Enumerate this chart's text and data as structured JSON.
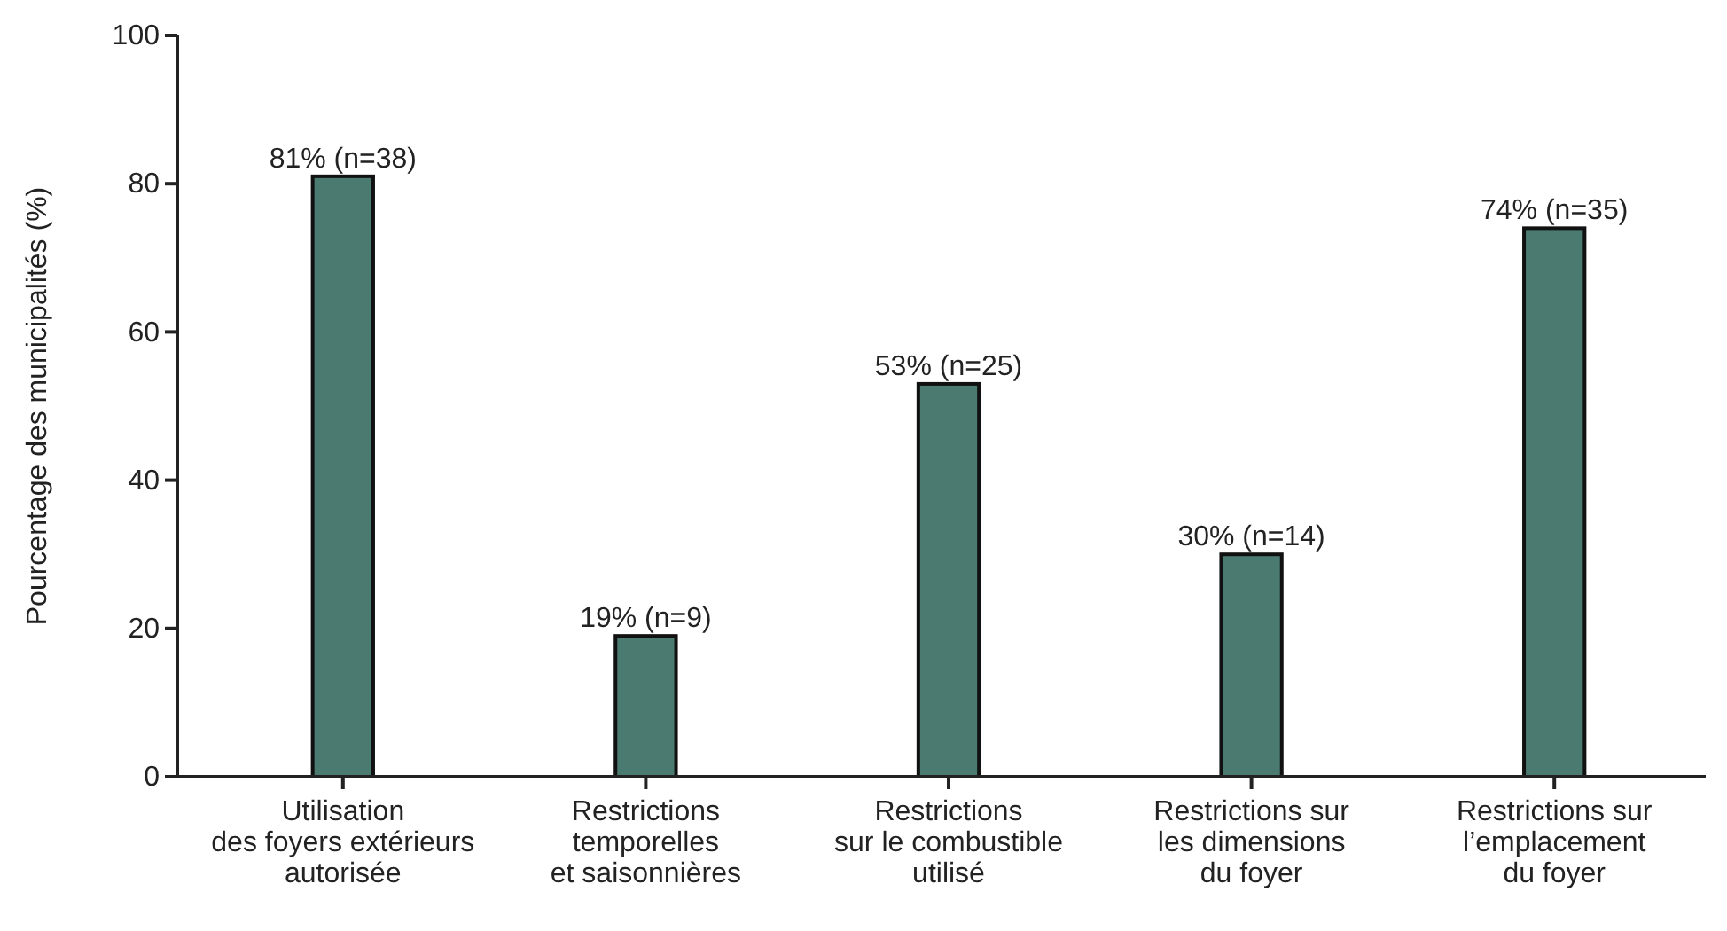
{
  "chart_data": {
    "type": "bar",
    "ylabel": "Pourcentage des municipalités (%)",
    "categories": [
      "Utilisation\ndes foyers extérieurs\nautorisée",
      "Restrictions\ntemporelles\net saisonnières",
      "Restrictions\nsur le combustible\nutilisé",
      "Restrictions sur\nles dimensions\ndu foyer",
      "Restrictions sur\nl’emplacement\ndu foyer"
    ],
    "values": [
      81,
      19,
      53,
      30,
      74
    ],
    "value_labels": [
      "81% (n=38)",
      "19% (n=9)",
      "53% (n=25)",
      "30% (n=14)",
      "74% (n=35)"
    ],
    "color": "#4a7a70",
    "ylim": [
      0,
      100
    ],
    "yticks": [
      0,
      20,
      40,
      60,
      80,
      100
    ],
    "grid": false
  }
}
